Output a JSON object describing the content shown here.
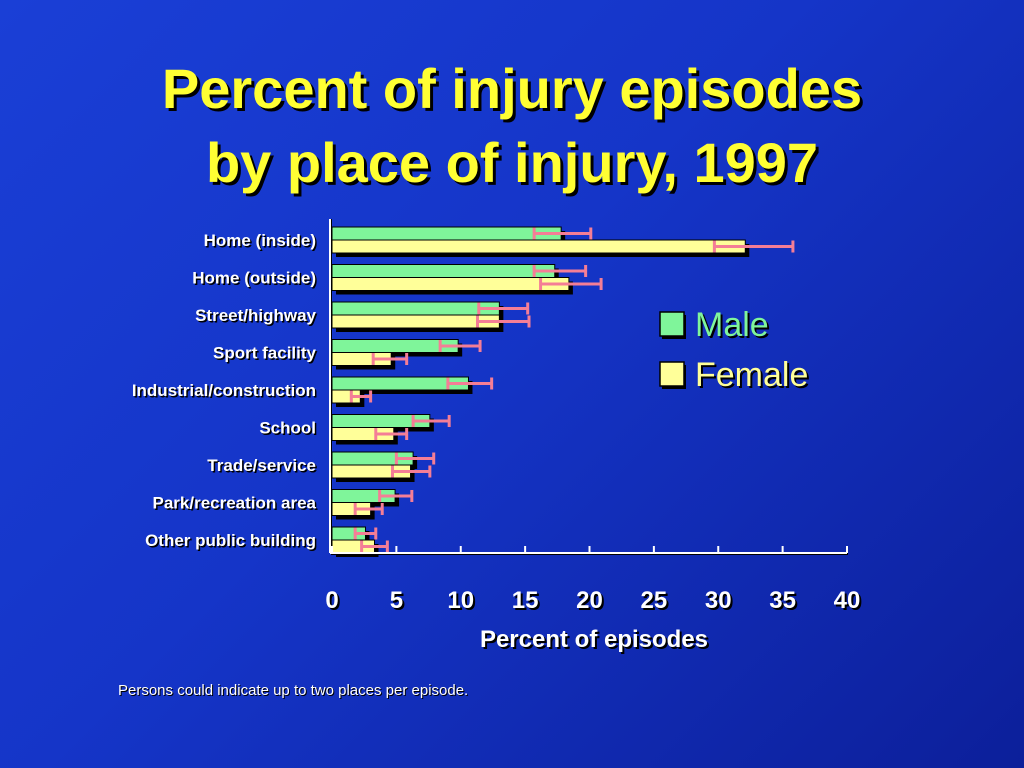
{
  "title_line1": "Percent of injury episodes",
  "title_line2": "by place of injury, 1997",
  "footnote": "Persons could indicate up to two places per episode.",
  "colors": {
    "male": "#7ff59a",
    "female": "#ffff99",
    "error_bar": "#f47e96",
    "title": "#ffff33",
    "male_legend_text": "#7ff59a",
    "female_legend_text": "#ffff99"
  },
  "chart_data": {
    "type": "bar",
    "orientation": "horizontal",
    "categories": [
      "Home (inside)",
      "Home (outside)",
      "Street/highway",
      "Sport facility",
      "Industrial/construction",
      "School",
      "Trade/service",
      "Park/recreation area",
      "Other public building"
    ],
    "series": [
      {
        "name": "Male",
        "values": [
          17.8,
          17.3,
          13.0,
          9.8,
          10.6,
          7.6,
          6.3,
          4.9,
          2.6
        ],
        "ci_low": [
          15.7,
          15.7,
          11.4,
          8.4,
          9.0,
          6.3,
          5.0,
          3.7,
          1.8
        ],
        "ci_high": [
          20.1,
          19.7,
          15.2,
          11.5,
          12.4,
          9.1,
          7.9,
          6.2,
          3.4
        ]
      },
      {
        "name": "Female",
        "values": [
          32.1,
          18.4,
          13.0,
          4.6,
          2.2,
          4.8,
          6.1,
          3.0,
          3.3
        ],
        "ci_low": [
          29.7,
          16.2,
          11.3,
          3.2,
          1.5,
          3.4,
          4.7,
          1.8,
          2.3
        ],
        "ci_high": [
          35.8,
          20.9,
          15.3,
          5.8,
          3.0,
          5.8,
          7.6,
          3.9,
          4.3
        ]
      }
    ],
    "xlabel": "Percent of episodes",
    "ylabel": "",
    "xlim": [
      0,
      40
    ],
    "xticks": [
      0,
      5,
      10,
      15,
      20,
      25,
      30,
      35,
      40
    ],
    "legend": {
      "position": "right",
      "entries": [
        "Male",
        "Female"
      ]
    },
    "grid": false,
    "error_bars": true
  }
}
